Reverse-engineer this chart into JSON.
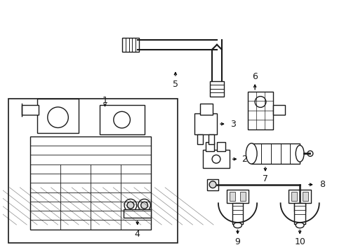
{
  "bg_color": "#ffffff",
  "line_color": "#1a1a1a",
  "figsize": [
    4.9,
    3.6
  ],
  "dpi": 100
}
